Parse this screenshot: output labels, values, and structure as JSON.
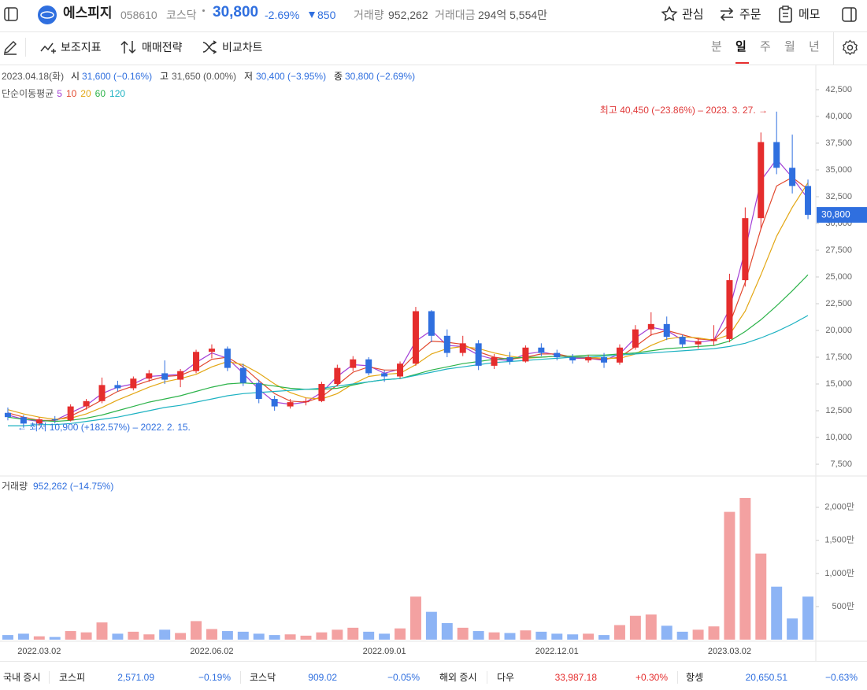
{
  "header": {
    "name": "에스피지",
    "code": "058610",
    "market": "코스닥",
    "price": "30,800",
    "change_pct": "-2.69%",
    "change": "850",
    "volume_label": "거래량",
    "volume": "952,262",
    "amount_label": "거래대금",
    "amount": "294억 5,554만",
    "actions": [
      "관심",
      "주문",
      "메모"
    ]
  },
  "toolbar": {
    "tools": [
      "보조지표",
      "매매전략",
      "비교차트"
    ],
    "periods": [
      "분",
      "일",
      "주",
      "월",
      "년"
    ]
  },
  "info": {
    "date": "2023.04.18(화)",
    "items": [
      {
        "label": "시",
        "value": "31,600 (−0.16%)"
      },
      {
        "label": "고",
        "value": "31,650 (0.00%)"
      },
      {
        "label": "저",
        "value": "30,400 (−3.95%)"
      },
      {
        "label": "종",
        "value": "30,800 (−2.69%)"
      }
    ],
    "ma_title": "단순이동평균"
  },
  "chart_data": {
    "type": "candlestick",
    "categories": [
      null,
      null,
      "2022.03.02",
      null,
      null,
      null,
      null,
      null,
      null,
      null,
      null,
      null,
      null,
      "2022.06.02",
      null,
      null,
      null,
      null,
      null,
      null,
      null,
      null,
      null,
      null,
      "2022.09.01",
      null,
      null,
      null,
      null,
      null,
      null,
      null,
      null,
      null,
      null,
      "2022.12.01",
      null,
      null,
      null,
      null,
      null,
      null,
      null,
      null,
      null,
      null,
      "2023.03.02",
      null,
      null,
      null,
      null,
      null
    ],
    "open": [
      12300,
      11900,
      11300,
      11700,
      11600,
      12900,
      13400,
      14900,
      14600,
      15500,
      16000,
      15400,
      16200,
      18000,
      18300,
      16500,
      15100,
      13600,
      12900,
      13300,
      13400,
      15000,
      16500,
      17300,
      16000,
      15700,
      16900,
      21800,
      19500,
      17900,
      18800,
      16700,
      17500,
      17100,
      18400,
      17900,
      17500,
      17200,
      17500,
      17000,
      18400,
      20100,
      20600,
      19400,
      18700,
      19000,
      19200,
      24700,
      30500,
      37600,
      35200,
      33500
    ],
    "high": [
      12800,
      12100,
      11900,
      12000,
      13100,
      13600,
      15600,
      15300,
      15700,
      16300,
      17200,
      16400,
      18200,
      18700,
      18500,
      16900,
      15400,
      13900,
      13600,
      13700,
      15200,
      16800,
      17600,
      17500,
      16300,
      17100,
      22200,
      21900,
      20100,
      19500,
      19100,
      17800,
      18000,
      18600,
      18800,
      18200,
      17800,
      17700,
      17900,
      18700,
      20500,
      21700,
      21300,
      19600,
      19300,
      20500,
      25300,
      31500,
      38500,
      40450,
      38300,
      34100
    ],
    "low": [
      11600,
      10900,
      11100,
      11300,
      11500,
      12600,
      13200,
      14300,
      14400,
      15200,
      15000,
      14700,
      16000,
      17400,
      16200,
      14800,
      13200,
      12500,
      12700,
      13000,
      13300,
      14800,
      16200,
      15800,
      15200,
      15500,
      16700,
      18900,
      17500,
      17600,
      16300,
      16400,
      16800,
      17000,
      17600,
      17200,
      16900,
      17000,
      16500,
      16800,
      18200,
      19500,
      19100,
      18400,
      18300,
      18600,
      18900,
      24100,
      29500,
      34600,
      32800,
      30400
    ],
    "close": [
      11900,
      11300,
      11700,
      11600,
      12900,
      13400,
      14900,
      14600,
      15500,
      16000,
      15400,
      16200,
      18000,
      18300,
      16500,
      15100,
      13600,
      12900,
      13300,
      13400,
      15000,
      16500,
      17300,
      16000,
      15700,
      16900,
      21800,
      19500,
      17900,
      18800,
      16700,
      17500,
      17100,
      18400,
      17900,
      17500,
      17200,
      17500,
      17000,
      18400,
      20100,
      20600,
      19400,
      18700,
      19000,
      19200,
      24700,
      30500,
      37600,
      35200,
      33500,
      30800
    ],
    "volume": [
      700000,
      900000,
      500000,
      400000,
      1300000,
      1100000,
      2600000,
      900000,
      1200000,
      800000,
      1500000,
      1000000,
      2800000,
      1600000,
      1300000,
      1200000,
      900000,
      700000,
      800000,
      600000,
      1100000,
      1500000,
      1800000,
      1200000,
      900000,
      1700000,
      6500000,
      4200000,
      2500000,
      1800000,
      1300000,
      1100000,
      1000000,
      1400000,
      1200000,
      900000,
      800000,
      900000,
      700000,
      2200000,
      3600000,
      3800000,
      2100000,
      1200000,
      1500000,
      2000000,
      19300000,
      21400000,
      13000000,
      8000000,
      3200000,
      6500000
    ],
    "up_color": "#e52d2d",
    "down_color": "#2f6fdf",
    "volume_up_color": "#f3a1a1",
    "volume_down_color": "#8db4f5",
    "series": [
      {
        "name": "5",
        "color": "#a23fd6",
        "values": [
          12100,
          11700,
          11500,
          11600,
          12300,
          13000,
          14100,
          14700,
          15000,
          15700,
          15800,
          15900,
          17000,
          17900,
          17400,
          16000,
          14500,
          13300,
          13100,
          13300,
          14200,
          15700,
          16800,
          16700,
          16000,
          16400,
          19000,
          20000,
          18600,
          18500,
          17700,
          17300,
          17200,
          17800,
          18000,
          17700,
          17400,
          17400,
          17200,
          17800,
          19300,
          20300,
          20000,
          19100,
          18900,
          19100,
          22000,
          27500,
          34000,
          36000,
          34300,
          32300
        ]
      },
      {
        "name": "10",
        "color": "#e2492f",
        "values": [
          12300,
          11900,
          11600,
          11600,
          12000,
          12700,
          13500,
          14300,
          14800,
          15300,
          15700,
          15800,
          16400,
          17300,
          17500,
          16600,
          15300,
          14100,
          13400,
          13300,
          13800,
          14900,
          16100,
          16600,
          16300,
          16300,
          17800,
          19000,
          18900,
          18700,
          18000,
          17500,
          17300,
          17500,
          17800,
          17800,
          17500,
          17400,
          17300,
          17500,
          18500,
          19600,
          20000,
          19600,
          19200,
          19100,
          20600,
          24500,
          29500,
          33500,
          34300,
          33200
        ]
      },
      {
        "name": "20",
        "color": "#e3a714",
        "values": [
          12600,
          12200,
          11900,
          11700,
          11800,
          12200,
          12800,
          13500,
          14100,
          14700,
          15200,
          15500,
          15900,
          16600,
          17100,
          16800,
          16000,
          15000,
          14200,
          13700,
          13600,
          14100,
          15000,
          15700,
          15900,
          16000,
          16800,
          17800,
          18300,
          18500,
          18300,
          17900,
          17600,
          17400,
          17500,
          17600,
          17600,
          17500,
          17400,
          17400,
          17800,
          18600,
          19200,
          19400,
          19300,
          19100,
          19600,
          21800,
          25200,
          28800,
          31500,
          33800
        ]
      },
      {
        "name": "60",
        "color": "#2cb34a",
        "values": [
          11900,
          11700,
          11600,
          11500,
          11600,
          11800,
          12100,
          12500,
          12900,
          13300,
          13600,
          13900,
          14300,
          14700,
          15000,
          15100,
          15000,
          14800,
          14600,
          14500,
          14500,
          14600,
          14900,
          15200,
          15400,
          15500,
          15900,
          16300,
          16600,
          16900,
          17100,
          17300,
          17400,
          17500,
          17500,
          17600,
          17600,
          17700,
          17700,
          17800,
          17900,
          18100,
          18300,
          18400,
          18500,
          18600,
          19000,
          19900,
          21000,
          22300,
          23700,
          25200
        ]
      },
      {
        "name": "120",
        "color": "#1db2c2",
        "values": [
          11100,
          11100,
          11200,
          11200,
          11300,
          11500,
          11700,
          11900,
          12200,
          12500,
          12800,
          13000,
          13300,
          13600,
          13900,
          14100,
          14200,
          14300,
          14400,
          14500,
          14600,
          14800,
          15000,
          15200,
          15400,
          15500,
          15800,
          16100,
          16400,
          16600,
          16800,
          17000,
          17100,
          17200,
          17300,
          17400,
          17500,
          17500,
          17600,
          17700,
          17800,
          17900,
          18000,
          18100,
          18200,
          18300,
          18500,
          18800,
          19300,
          19900,
          20600,
          21400
        ]
      }
    ],
    "ylim": [
      6400,
      44850
    ],
    "yticks": [
      {
        "value": 7500,
        "label": "7,500"
      },
      {
        "value": 10000,
        "label": "10,000"
      },
      {
        "value": 12500,
        "label": "12,500"
      },
      {
        "value": 15000,
        "label": "15,000"
      },
      {
        "value": 17500,
        "label": "17,500"
      },
      {
        "value": 20000,
        "label": "20,000"
      },
      {
        "value": 22500,
        "label": "22,500"
      },
      {
        "value": 25000,
        "label": "25,000"
      },
      {
        "value": 27500,
        "label": "27,500"
      },
      {
        "value": 30000,
        "label": "30,000"
      },
      {
        "value": 32500,
        "label": "32,500"
      },
      {
        "value": 35000,
        "label": "35,000"
      },
      {
        "value": 37500,
        "label": "37,500"
      },
      {
        "value": 40000,
        "label": "40,000"
      },
      {
        "value": 42500,
        "label": "42,500"
      }
    ],
    "annotations": [
      "최고 40,450 (−23.86%) – 2023. 3. 27. →",
      "← 최저 10,900 (+182.57%) – 2022. 2. 15."
    ],
    "volume_title": "거래량",
    "volume_value": "952,262 (−14.75%)",
    "volume_ylim": [
      0,
      24600000
    ],
    "volume_yticks": [
      {
        "value": 5000000,
        "label": "500만"
      },
      {
        "value": 10000000,
        "label": "1,000만"
      },
      {
        "value": 15000000,
        "label": "1,500만"
      },
      {
        "value": 20000000,
        "label": "2,000만"
      }
    ]
  },
  "footer": {
    "domestic": "국내 증시",
    "foreign": "해외 증시",
    "indices": [
      {
        "name": "코스피",
        "value": "2,571.09",
        "change": "−0.19%",
        "color": "#2f6fdf"
      },
      {
        "name": "코스닥",
        "value": "909.02",
        "change": "−0.05%",
        "color": "#2f6fdf"
      },
      {
        "name": "다우",
        "value": "33,987.18",
        "change": "+0.30%",
        "color": "#e52d2d"
      },
      {
        "name": "항셍",
        "value": "20,650.51",
        "change": "−0.63%",
        "color": "#2f6fdf"
      }
    ]
  }
}
